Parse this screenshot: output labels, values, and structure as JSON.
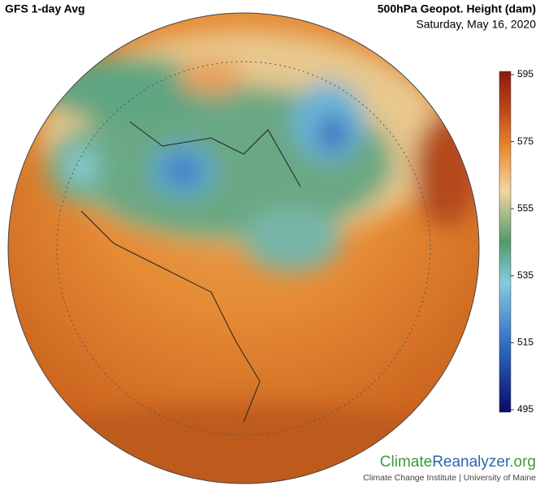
{
  "header": {
    "title": "GFS 1-day Avg",
    "variable": "500hPa Geopot. Height (dam)",
    "date": "Saturday, May 16, 2020"
  },
  "colorbar": {
    "lim": [
      495,
      595
    ],
    "ticks": [
      495,
      515,
      535,
      555,
      575,
      595
    ]
  },
  "footer": {
    "brand": [
      "Climate",
      "Reanalyzer",
      ".org"
    ],
    "credit": "Climate Change Institute | University of Maine"
  }
}
